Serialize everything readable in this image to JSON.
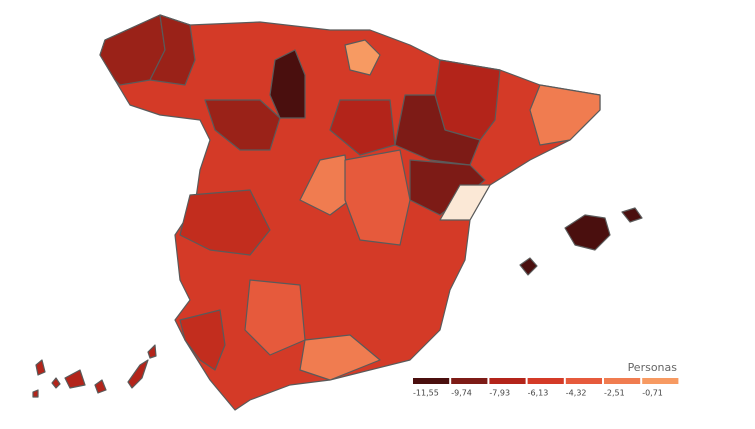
{
  "legend": {
    "title": "Personas",
    "bins": [
      {
        "label": "-11,55",
        "color": "#4a0f0e"
      },
      {
        "label": "-9,74",
        "color": "#7d1b16"
      },
      {
        "label": "-7,93",
        "color": "#b3241a"
      },
      {
        "label": "-6,13",
        "color": "#d43a27"
      },
      {
        "label": "-4,32",
        "color": "#e65a3c"
      },
      {
        "label": "-2,51",
        "color": "#f07c50"
      },
      {
        "label": "-0,71",
        "color": "#f79a62"
      }
    ]
  }
}
